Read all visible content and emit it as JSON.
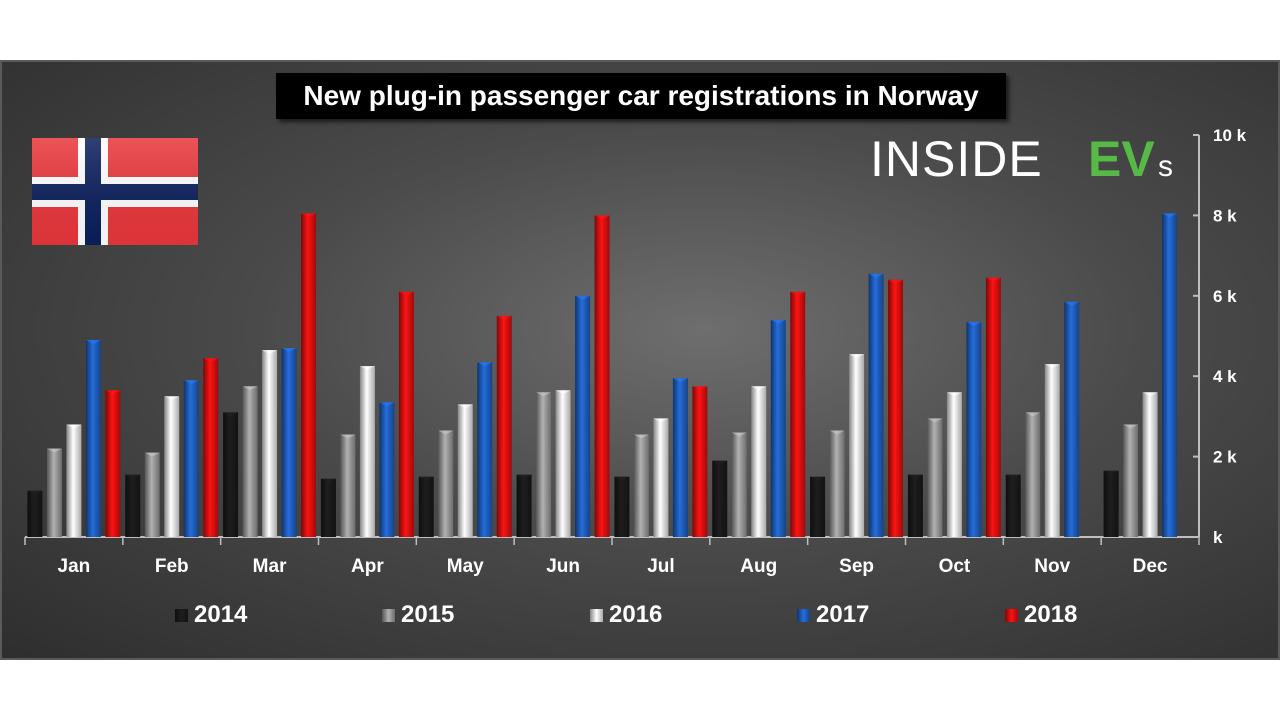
{
  "title": "New plug-in passenger car registrations in Norway",
  "logo": {
    "part1": "INSIDE",
    "part2": "EV",
    "part3": "s"
  },
  "legend": [
    {
      "label": "2014",
      "color": "#1a1a1a"
    },
    {
      "label": "2015",
      "color": "#9a9a9a"
    },
    {
      "label": "2016",
      "color": "#f2f2f2"
    },
    {
      "label": "2017",
      "color": "#1f5fbf"
    },
    {
      "label": "2018",
      "color": "#e01010"
    }
  ],
  "chart_data": {
    "type": "bar",
    "title": "New plug-in passenger car registrations in Norway",
    "categories": [
      "Jan",
      "Feb",
      "Mar",
      "Apr",
      "May",
      "Jun",
      "Jul",
      "Aug",
      "Sep",
      "Oct",
      "Nov",
      "Dec"
    ],
    "series": [
      {
        "name": "2014",
        "color": "#1a1a1a",
        "values": [
          1150,
          1550,
          3100,
          1450,
          1500,
          1550,
          1500,
          1900,
          1500,
          1550,
          1550,
          1650
        ]
      },
      {
        "name": "2015",
        "color": "#9a9a9a",
        "values": [
          2200,
          2100,
          3750,
          2550,
          2650,
          3600,
          2550,
          2600,
          2650,
          2950,
          3100,
          2800
        ]
      },
      {
        "name": "2016",
        "color": "#f2f2f2",
        "values": [
          2800,
          3500,
          4650,
          4250,
          3300,
          3650,
          2950,
          3750,
          4550,
          3600,
          4300,
          3600
        ]
      },
      {
        "name": "2017",
        "color": "#1f5fbf",
        "values": [
          4900,
          3900,
          4700,
          3350,
          4350,
          6000,
          3950,
          5400,
          6550,
          5350,
          5850,
          8050
        ]
      },
      {
        "name": "2018",
        "color": "#e01010",
        "values": [
          3650,
          4450,
          8050,
          6100,
          5500,
          8000,
          3750,
          6100,
          6400,
          6450,
          null,
          null
        ]
      }
    ],
    "y_ticks": [
      "k",
      "2 k",
      "4 k",
      "6 k",
      "8 k",
      "10 k"
    ],
    "ylim": [
      0,
      10000
    ],
    "xlabel": "",
    "ylabel": "",
    "legend_position": "bottom",
    "grid": false
  }
}
